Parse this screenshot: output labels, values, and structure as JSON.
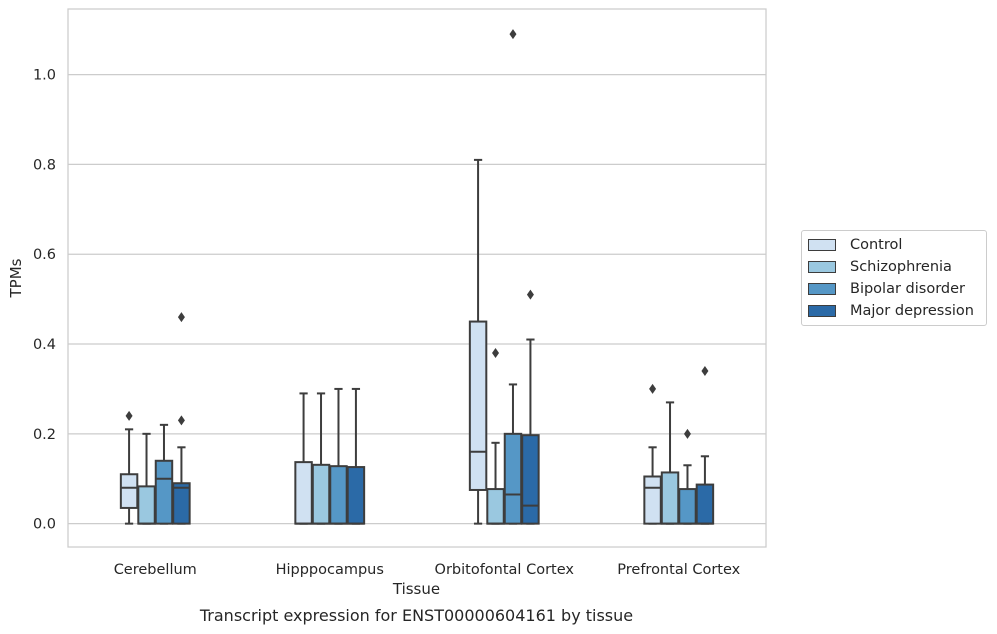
{
  "chart_data": {
    "type": "boxplot",
    "title": "",
    "caption": "Transcript expression for ENST00000604161 by tissue",
    "xlabel": "Tissue",
    "ylabel": "TPMs",
    "ylim": [
      -0.052,
      1.146
    ],
    "yticks": [
      0.0,
      0.2,
      0.4,
      0.6,
      0.8,
      1.0
    ],
    "ytick_labels": [
      "0.0",
      "0.2",
      "0.4",
      "0.6",
      "0.8",
      "1.0"
    ],
    "grid": "horizontal",
    "legend_position": "right",
    "categories": [
      "Cerebellum",
      "Hipppocampus",
      "Orbitofontal Cortex",
      "Prefrontal Cortex"
    ],
    "series": [
      {
        "name": "Control",
        "color": "#d0e1f2",
        "boxes": [
          {
            "whislo": 0.0,
            "q1": 0.035,
            "med": 0.08,
            "q3": 0.11,
            "whishi": 0.21,
            "fliers": [
              0.24
            ]
          },
          {
            "whislo": 0.0,
            "q1": 0.0,
            "med": 0.0,
            "q3": 0.137,
            "whishi": 0.29,
            "fliers": []
          },
          {
            "whislo": 0.0,
            "q1": 0.075,
            "med": 0.16,
            "q3": 0.45,
            "whishi": 0.81,
            "fliers": []
          },
          {
            "whislo": 0.0,
            "q1": 0.0,
            "med": 0.08,
            "q3": 0.105,
            "whishi": 0.17,
            "fliers": [
              0.3
            ]
          }
        ]
      },
      {
        "name": "Schizophrenia",
        "color": "#9ac8e0",
        "boxes": [
          {
            "whislo": 0.0,
            "q1": 0.0,
            "med": 0.0,
            "q3": 0.083,
            "whishi": 0.2,
            "fliers": []
          },
          {
            "whislo": 0.0,
            "q1": 0.0,
            "med": 0.0,
            "q3": 0.131,
            "whishi": 0.29,
            "fliers": []
          },
          {
            "whislo": 0.0,
            "q1": 0.0,
            "med": 0.0,
            "q3": 0.077,
            "whishi": 0.18,
            "fliers": [
              0.38
            ]
          },
          {
            "whislo": 0.0,
            "q1": 0.0,
            "med": 0.0,
            "q3": 0.114,
            "whishi": 0.27,
            "fliers": []
          }
        ]
      },
      {
        "name": "Bipolar disorder",
        "color": "#5597c6",
        "boxes": [
          {
            "whislo": 0.0,
            "q1": 0.0,
            "med": 0.1,
            "q3": 0.14,
            "whishi": 0.22,
            "fliers": []
          },
          {
            "whislo": 0.0,
            "q1": 0.0,
            "med": 0.0,
            "q3": 0.128,
            "whishi": 0.3,
            "fliers": []
          },
          {
            "whislo": 0.0,
            "q1": 0.0,
            "med": 0.065,
            "q3": 0.2,
            "whishi": 0.31,
            "fliers": [
              1.09
            ]
          },
          {
            "whislo": 0.0,
            "q1": 0.0,
            "med": 0.0,
            "q3": 0.077,
            "whishi": 0.13,
            "fliers": [
              0.2
            ]
          }
        ]
      },
      {
        "name": "Major depression",
        "color": "#2b6aa7",
        "boxes": [
          {
            "whislo": 0.0,
            "q1": 0.0,
            "med": 0.08,
            "q3": 0.09,
            "whishi": 0.17,
            "fliers": [
              0.23,
              0.46
            ]
          },
          {
            "whislo": 0.0,
            "q1": 0.0,
            "med": 0.0,
            "q3": 0.126,
            "whishi": 0.3,
            "fliers": []
          },
          {
            "whislo": 0.0,
            "q1": 0.0,
            "med": 0.04,
            "q3": 0.197,
            "whishi": 0.41,
            "fliers": [
              0.51
            ]
          },
          {
            "whislo": 0.0,
            "q1": 0.0,
            "med": 0.0,
            "q3": 0.087,
            "whishi": 0.15,
            "fliers": [
              0.34
            ]
          }
        ]
      }
    ]
  }
}
